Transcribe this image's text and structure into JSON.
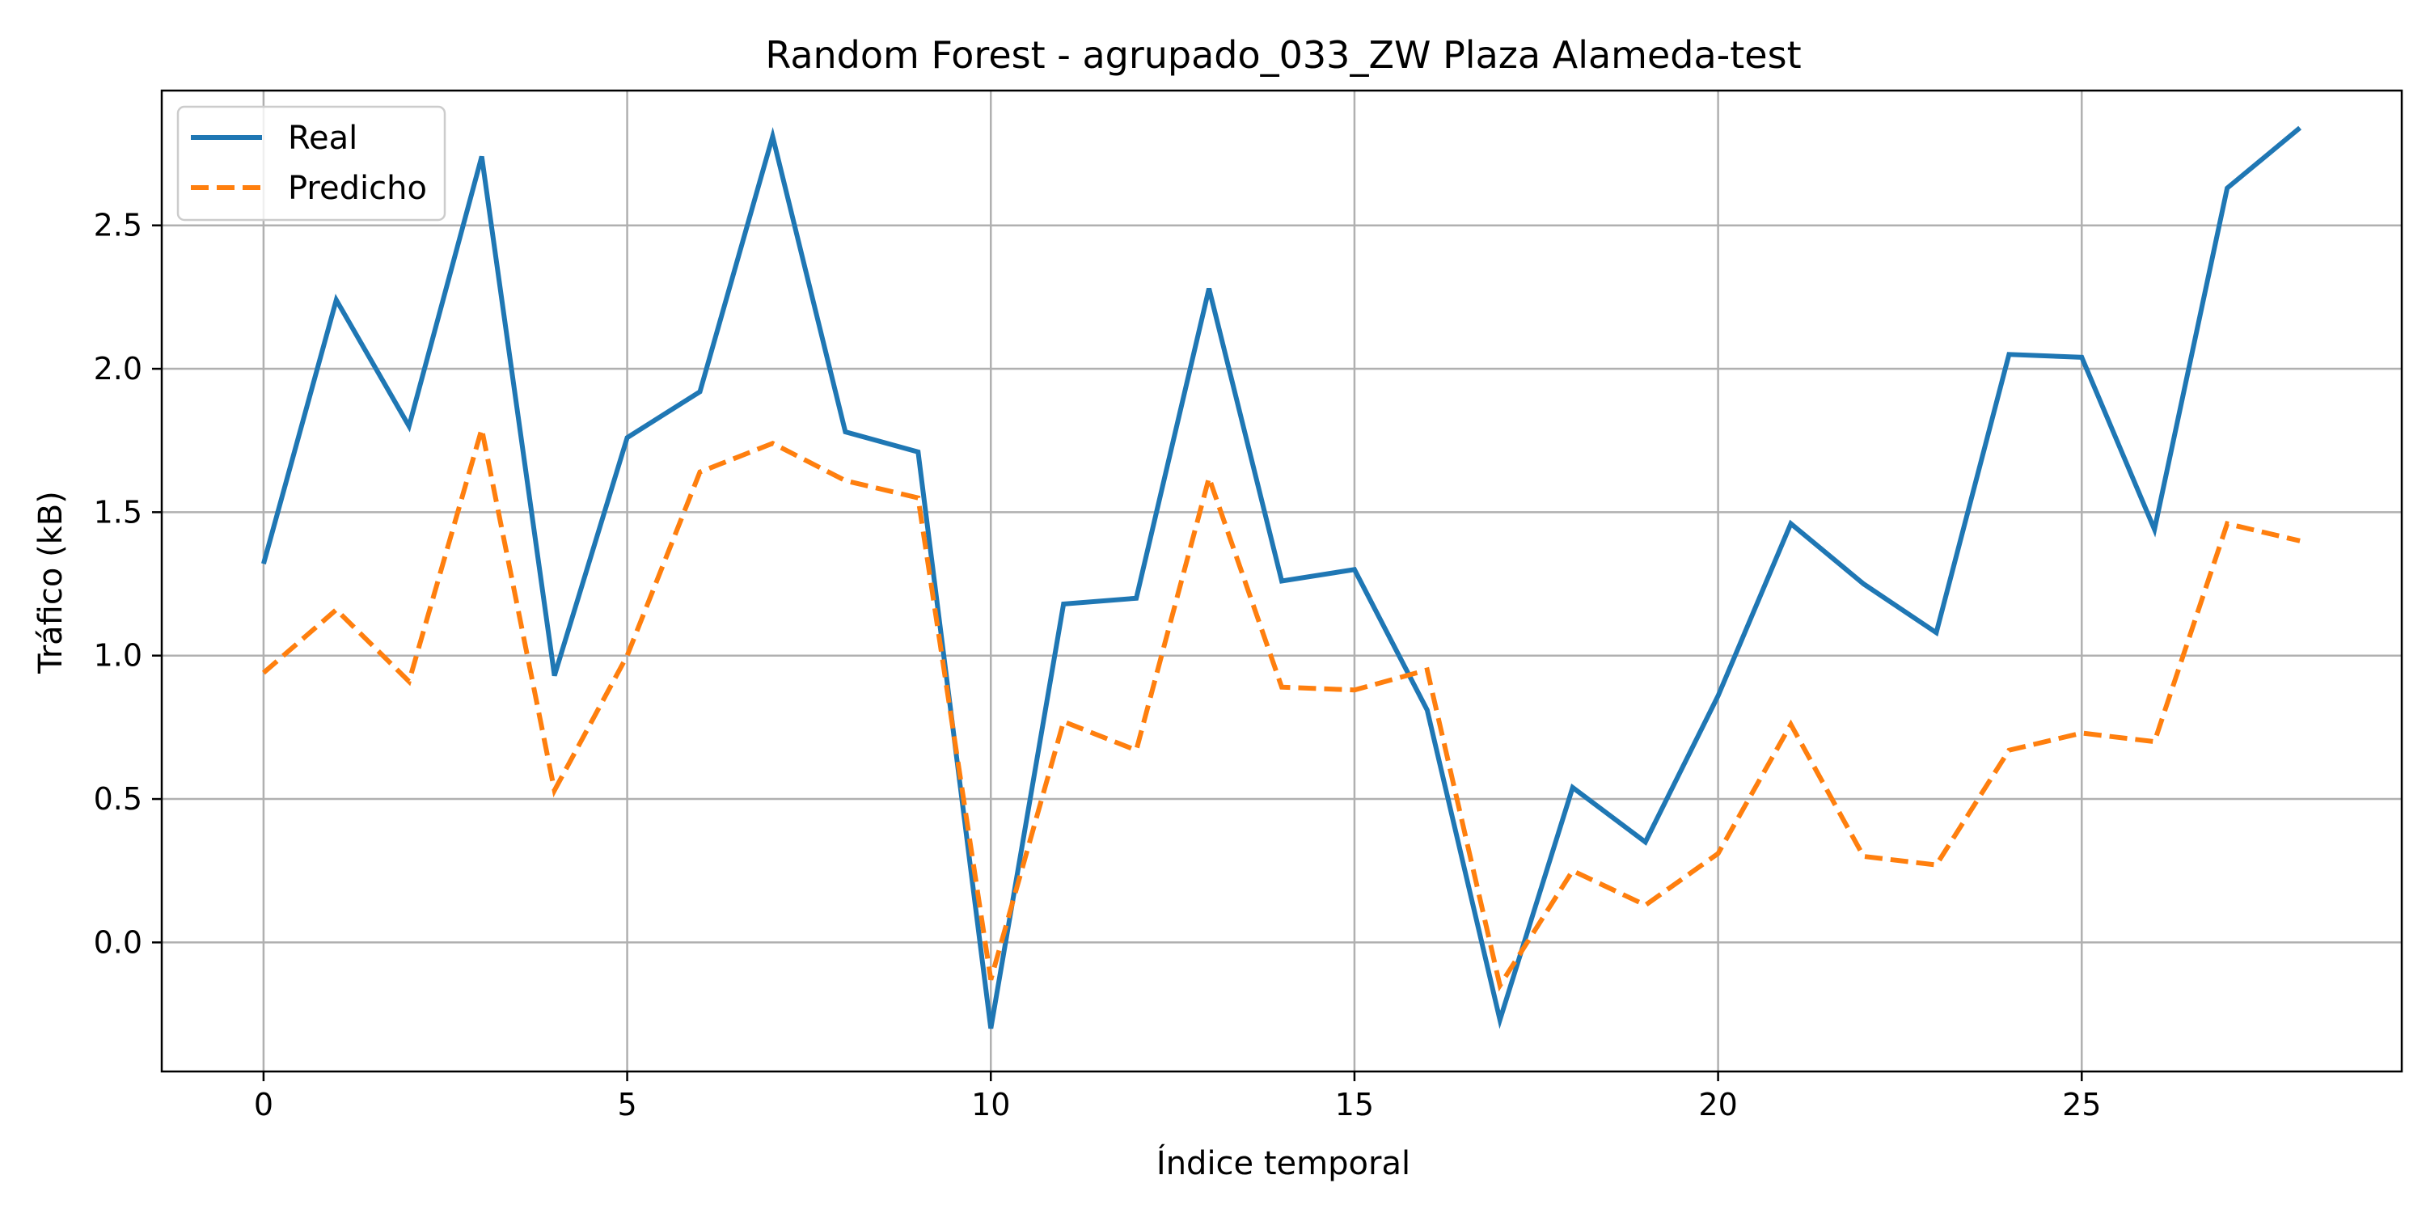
{
  "chart_data": {
    "type": "line",
    "title": "Random Forest - agrupado_033_ZW Plaza Alameda-test",
    "xlabel": "Índice temporal",
    "ylabel": "Tráfico (kB)",
    "xlim": [
      -1.4,
      29.4
    ],
    "ylim": [
      -0.45,
      2.97
    ],
    "xticks": [
      0,
      5,
      10,
      15,
      20,
      25
    ],
    "yticks": [
      0.0,
      0.5,
      1.0,
      1.5,
      2.0,
      2.5
    ],
    "xtick_labels": [
      "0",
      "5",
      "10",
      "15",
      "20",
      "25"
    ],
    "ytick_labels": [
      "0.0",
      "0.5",
      "1.0",
      "1.5",
      "2.0",
      "2.5"
    ],
    "grid": true,
    "legend_position": "top-left",
    "x": [
      0,
      1,
      2,
      3,
      4,
      5,
      6,
      7,
      8,
      9,
      10,
      11,
      12,
      13,
      14,
      15,
      16,
      17,
      18,
      19,
      20,
      21,
      22,
      23,
      24,
      25,
      26,
      27,
      28
    ],
    "series": [
      {
        "name": "Real",
        "color": "#1f77b4",
        "style": "solid",
        "values": [
          1.32,
          2.24,
          1.8,
          2.74,
          0.93,
          1.76,
          1.92,
          2.81,
          1.78,
          1.71,
          -0.3,
          1.18,
          1.2,
          2.28,
          1.26,
          1.3,
          0.81,
          -0.27,
          0.54,
          0.35,
          0.86,
          1.46,
          1.25,
          1.08,
          2.05,
          2.04,
          1.44,
          2.63,
          2.84
        ]
      },
      {
        "name": "Predicho",
        "color": "#ff7f0e",
        "style": "dashed",
        "values": [
          0.94,
          1.16,
          0.91,
          1.79,
          0.53,
          1.0,
          1.64,
          1.74,
          1.61,
          1.55,
          -0.13,
          0.77,
          0.67,
          1.62,
          0.89,
          0.88,
          0.95,
          -0.15,
          0.25,
          0.13,
          0.31,
          0.76,
          0.3,
          0.27,
          0.67,
          0.73,
          0.7,
          1.46,
          1.4
        ]
      }
    ]
  }
}
